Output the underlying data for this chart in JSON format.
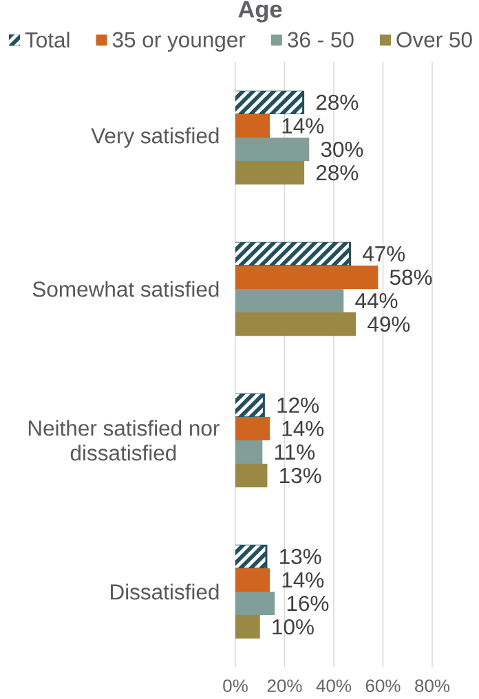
{
  "chart_data": {
    "type": "bar",
    "orientation": "horizontal",
    "title": "Age",
    "categories": [
      "Very satisfied",
      "Somewhat satisfied",
      "Neither satisfied nor dissatisfied",
      "Dissatisfied"
    ],
    "series": [
      {
        "name": "Total",
        "color": "#23505e",
        "values": [
          28,
          47,
          12,
          13
        ],
        "value_labels": [
          "28%",
          "47%",
          "12%",
          "13%"
        ]
      },
      {
        "name": "35 or younger",
        "color": "#d0651f",
        "values": [
          14,
          58,
          14,
          14
        ],
        "value_labels": [
          "14%",
          "58%",
          "14%",
          "14%"
        ]
      },
      {
        "name": "36 - 50",
        "color": "#829e99",
        "values": [
          30,
          44,
          11,
          16
        ],
        "value_labels": [
          "30%",
          "44%",
          "11%",
          "16%"
        ]
      },
      {
        "name": "Over 50",
        "color": "#998944",
        "values": [
          28,
          49,
          13,
          10
        ],
        "value_labels": [
          "28%",
          "49%",
          "13%",
          "10%"
        ]
      }
    ],
    "xlim": [
      0,
      80
    ],
    "xticks": [
      {
        "value": 0,
        "label": "0%"
      },
      {
        "value": 20,
        "label": "20%"
      },
      {
        "value": 40,
        "label": "40%"
      },
      {
        "value": 60,
        "label": "60%"
      },
      {
        "value": 80,
        "label": "80%"
      }
    ],
    "grid": "x",
    "legend": "top"
  }
}
